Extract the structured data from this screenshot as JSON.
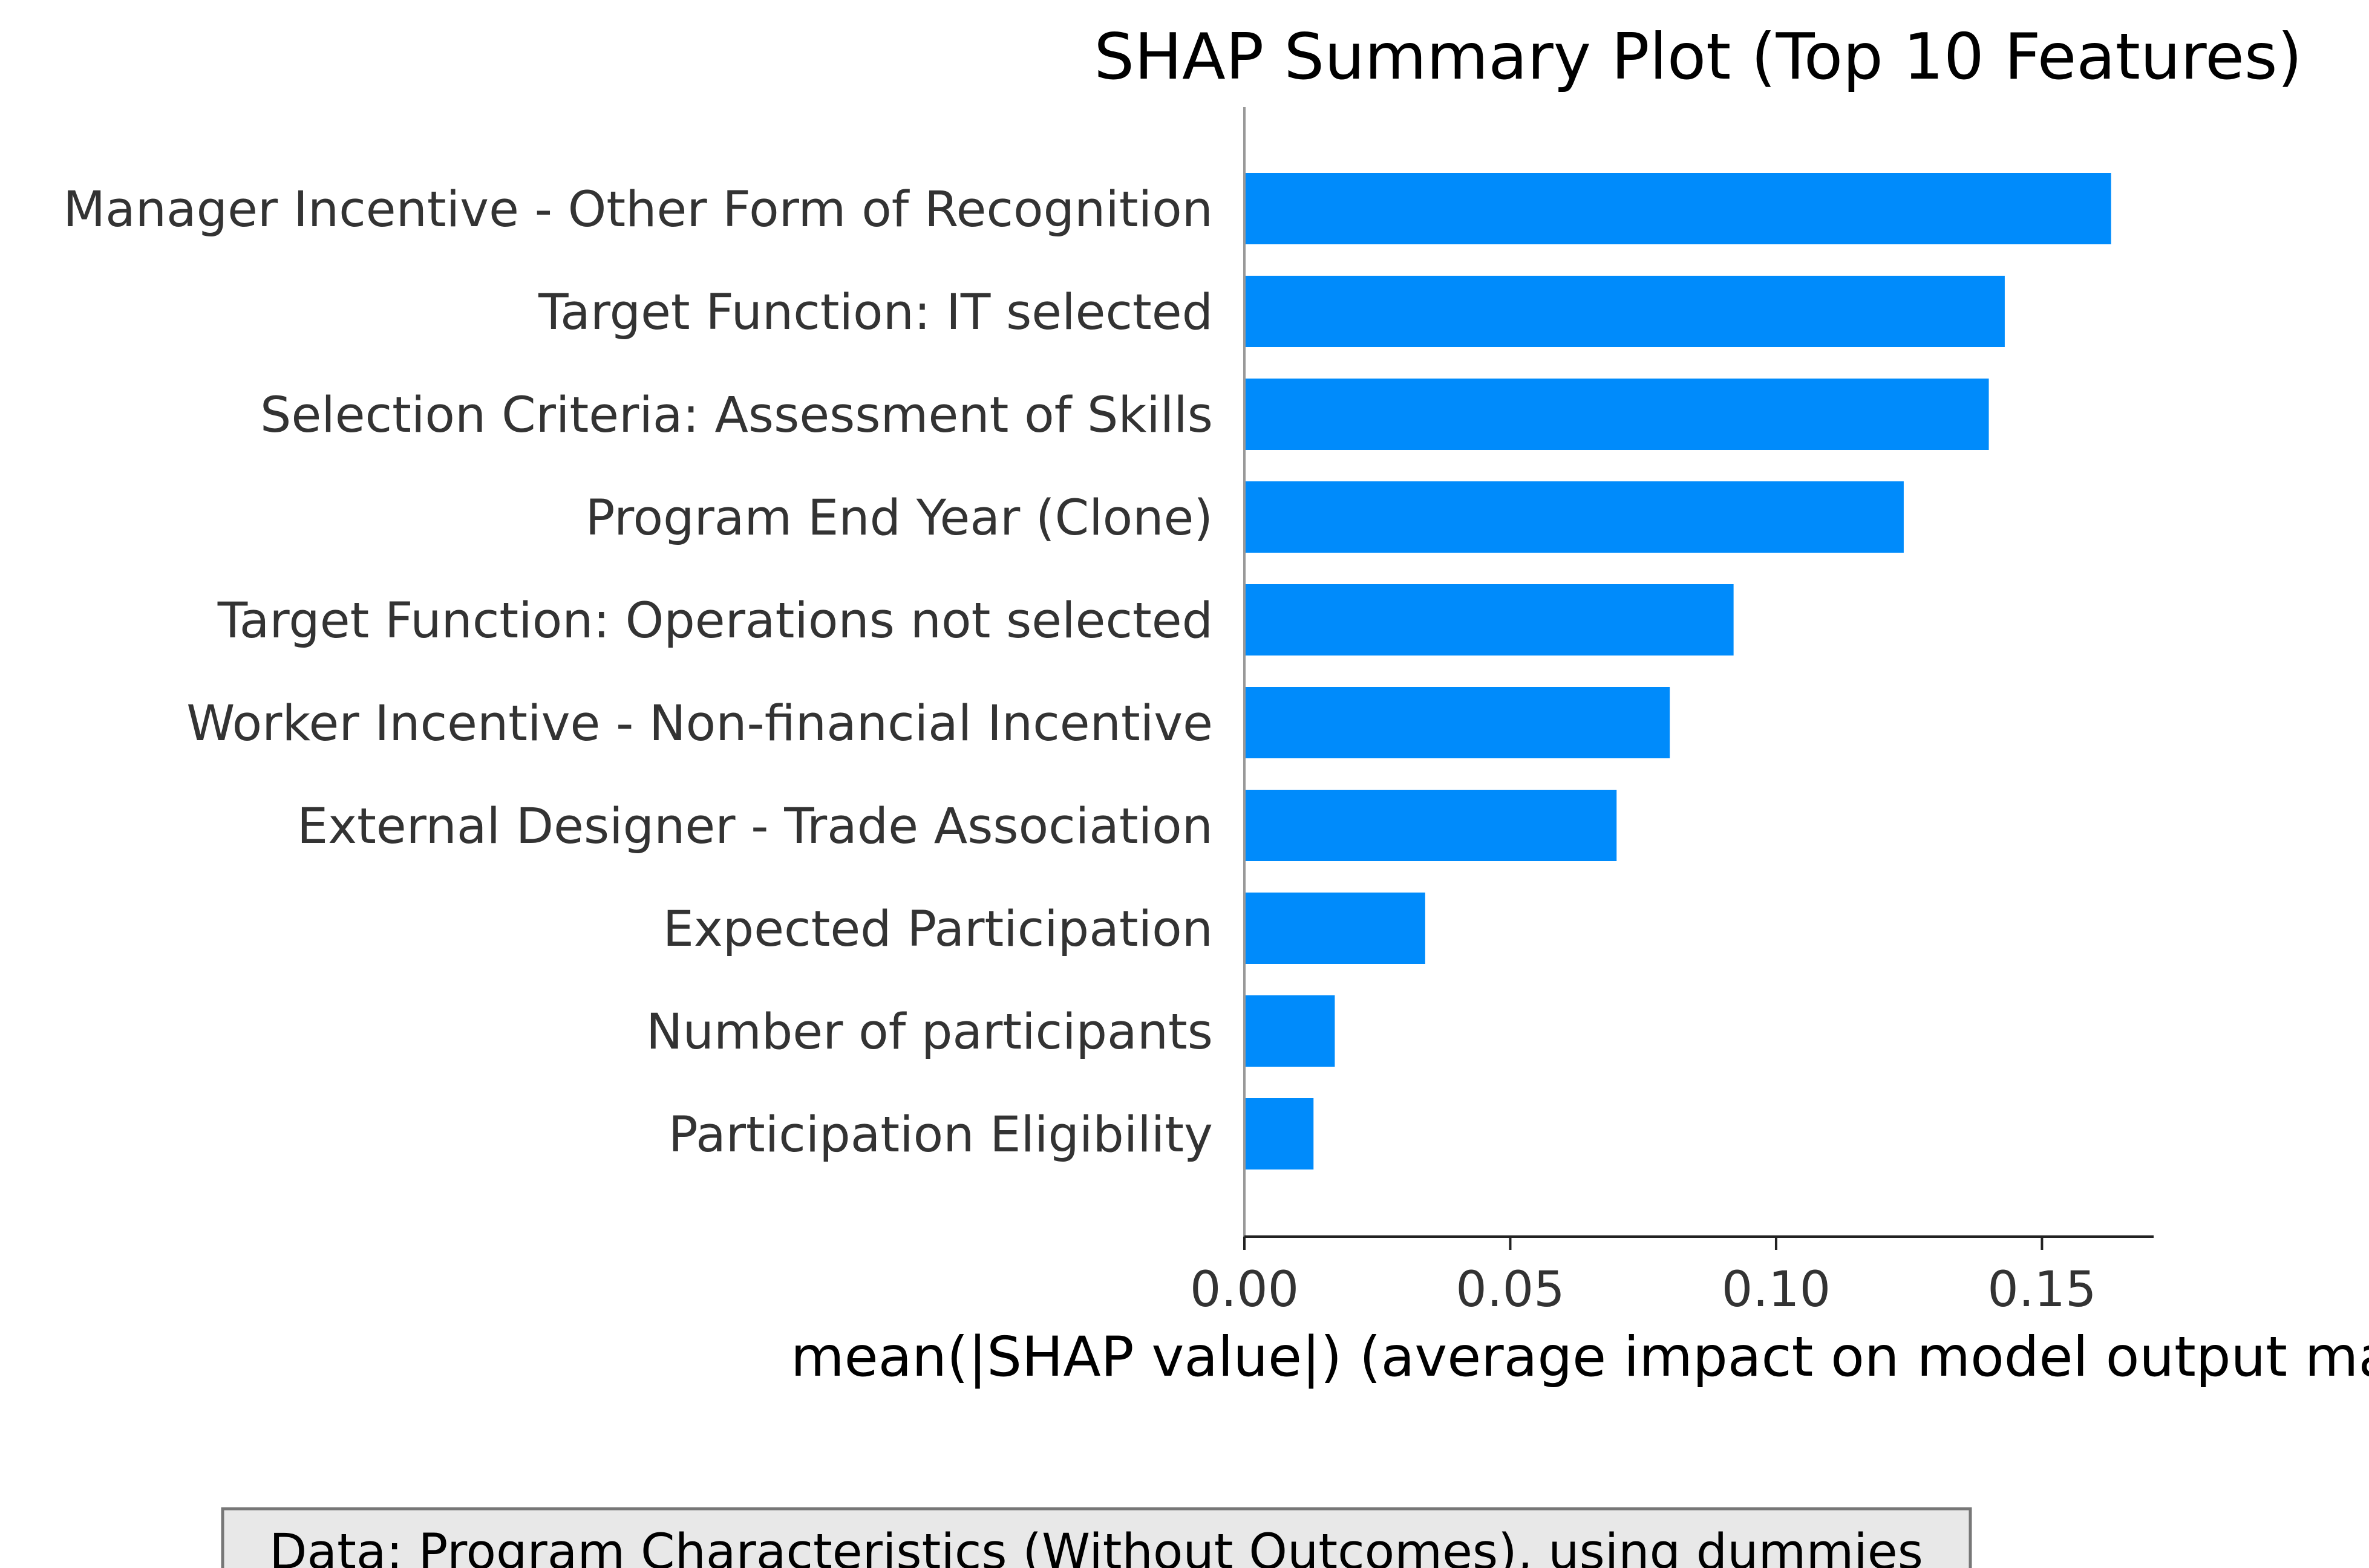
{
  "chart_data": {
    "type": "bar",
    "orientation": "horizontal",
    "title": "SHAP Summary Plot (Top 10 Features)",
    "xlabel": "mean(|SHAP value|) (average impact on model output ma",
    "ylabel": "",
    "categories": [
      "Manager Incentive - Other Form of Recognition",
      "Target Function: IT selected",
      "Selection Criteria: Assessment of Skills",
      "Program End Year (Clone)",
      "Target Function: Operations not selected",
      "Worker Incentive - Non-financial Incentive",
      "External Designer - Trade Association",
      "Expected Participation",
      "Number of participants",
      "Participation Eligibility"
    ],
    "values": [
      0.163,
      0.143,
      0.14,
      0.124,
      0.092,
      0.08,
      0.07,
      0.034,
      0.017,
      0.013
    ],
    "xlim": [
      0,
      0.171
    ],
    "xticks": [
      0.0,
      0.05,
      0.1,
      0.15
    ],
    "xtick_labels": [
      "0.00",
      "0.05",
      "0.10",
      "0.15"
    ],
    "grid": false,
    "bar_color": "#008bfb",
    "annotation": "Data: Program Characteristics (Without Outcomes), using dummies"
  }
}
